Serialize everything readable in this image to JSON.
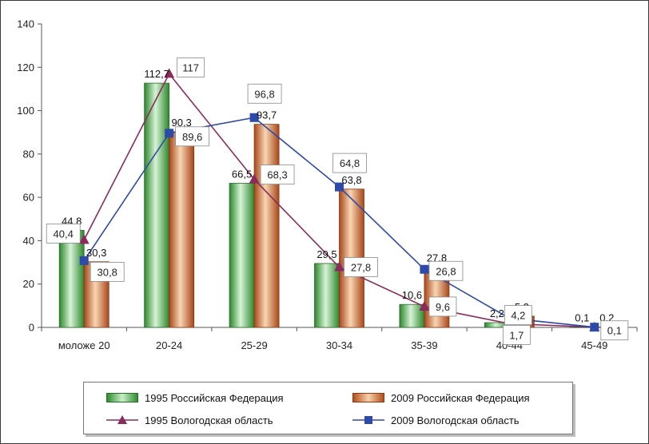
{
  "chart_data": {
    "type": "bar",
    "categories": [
      "моложе 20",
      "20-24",
      "25-29",
      "30-34",
      "35-39",
      "40-44",
      "45-49"
    ],
    "ylim": [
      0,
      140
    ],
    "yticks": [
      0,
      20,
      40,
      60,
      80,
      100,
      120,
      140
    ],
    "grid": false,
    "legend_position": "bottom",
    "series": [
      {
        "name": "1995 Российская Федерация",
        "kind": "bar",
        "color": "#3f9a3f",
        "values": [
          44.8,
          112.7,
          66.5,
          29.5,
          10.6,
          2.2,
          0.1
        ],
        "labels": [
          "44,8",
          "112,7",
          "66,5",
          "29,5",
          "10,6",
          "2,2",
          "0,1"
        ]
      },
      {
        "name": "2009 Российская Федерация",
        "kind": "bar",
        "color": "#c8602a",
        "values": [
          30.3,
          90.3,
          93.7,
          63.8,
          27.8,
          5.2,
          0.2
        ],
        "labels": [
          "30,3",
          "90,3",
          "93,7",
          "63,8",
          "27,8",
          "5,2",
          "0,2"
        ]
      },
      {
        "name": "1995 Вологодская область",
        "kind": "line",
        "marker": "triangle",
        "color": "#8b2a5c",
        "values": [
          40.4,
          117,
          68.3,
          27.8,
          9.6,
          1.7,
          0.1
        ],
        "labels": [
          "40,4",
          "117",
          "68,3",
          "27,8",
          "9,6",
          "1,7",
          "0,1"
        ]
      },
      {
        "name": "2009 Вологодская область",
        "kind": "line",
        "marker": "square",
        "color": "#2e4aa8",
        "values": [
          30.8,
          89.6,
          96.8,
          64.8,
          26.8,
          4.2,
          0.1
        ],
        "labels": [
          "30,8",
          "89,6",
          "96,8",
          "64,8",
          "26,8",
          "4,2",
          "0,1"
        ]
      }
    ]
  }
}
